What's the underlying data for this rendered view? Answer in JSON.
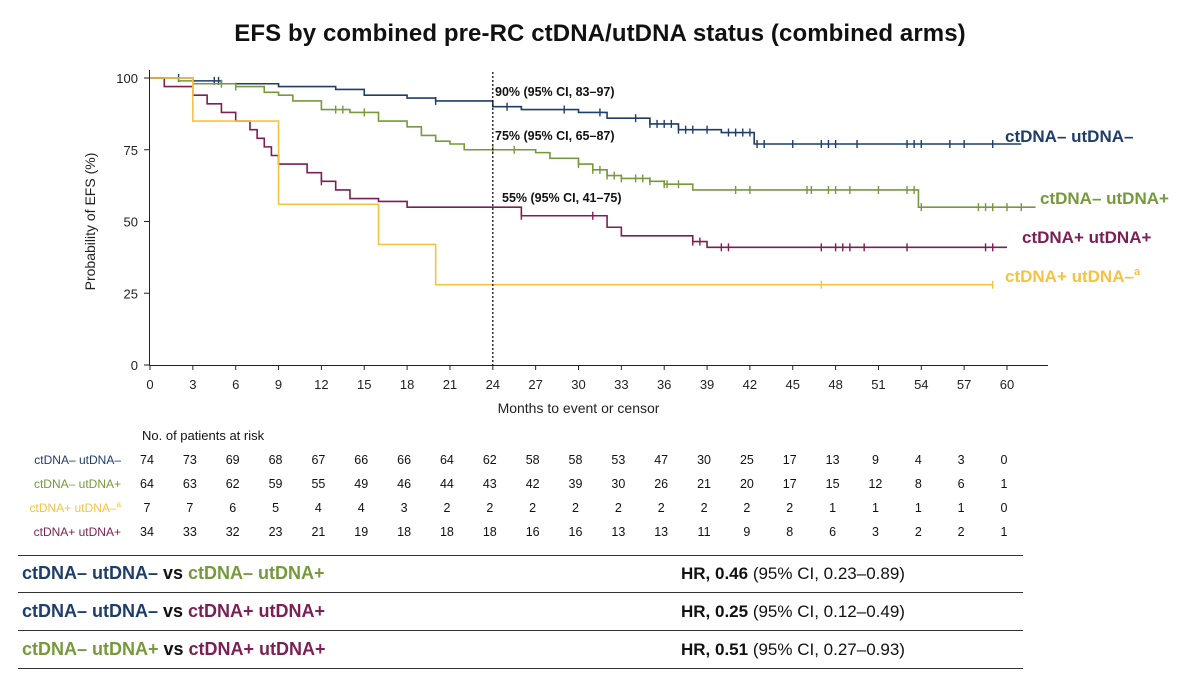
{
  "title": "EFS by combined pre-RC ctDNA/utDNA status (combined arms)",
  "chart_data": {
    "type": "line",
    "subtype": "kaplan-meier",
    "xlabel": "Months to event or censor",
    "ylabel": "Probability of EFS (%)",
    "xlim": [
      0,
      60
    ],
    "ylim": [
      0,
      100
    ],
    "xticks": [
      0,
      3,
      6,
      9,
      12,
      15,
      18,
      21,
      24,
      27,
      30,
      33,
      36,
      39,
      42,
      45,
      48,
      51,
      54,
      57,
      60
    ],
    "yticks": [
      0,
      25,
      50,
      75,
      100
    ],
    "reference_line_x": 24,
    "annotations": [
      {
        "text": "90% (95% CI, 83–97)",
        "x": 24,
        "y": 90
      },
      {
        "text": "75% (95% CI, 65–87)",
        "x": 24,
        "y": 75
      },
      {
        "text": "55% (95% CI, 41–75)",
        "x": 24,
        "y": 55
      }
    ],
    "series": [
      {
        "name": "ctDNA– utDNA–",
        "label_suffix": "",
        "color": "#1f3d6b",
        "steps": [
          [
            0,
            100
          ],
          [
            3,
            99
          ],
          [
            5,
            98
          ],
          [
            9,
            97
          ],
          [
            13,
            96
          ],
          [
            15,
            94
          ],
          [
            18,
            93
          ],
          [
            20,
            92
          ],
          [
            24,
            90
          ],
          [
            26,
            89
          ],
          [
            30,
            88
          ],
          [
            32,
            86
          ],
          [
            35,
            84
          ],
          [
            37,
            82
          ],
          [
            40,
            81
          ],
          [
            42.3,
            77
          ],
          [
            61,
            77
          ]
        ],
        "censors": [
          2,
          4.5,
          4.8,
          20,
          25,
          29,
          31.5,
          34,
          35,
          35.5,
          36,
          36.5,
          37,
          37.5,
          38,
          39,
          40.5,
          41,
          41.5,
          42,
          42.5,
          43,
          45,
          47,
          47.5,
          48,
          49.5,
          53,
          53.5,
          54,
          56,
          57,
          59
        ]
      },
      {
        "name": "ctDNA– utDNA+",
        "label_suffix": "",
        "color": "#76993c",
        "steps": [
          [
            0,
            100
          ],
          [
            2,
            99
          ],
          [
            3,
            98
          ],
          [
            6,
            97
          ],
          [
            8,
            95
          ],
          [
            9,
            94
          ],
          [
            10,
            92
          ],
          [
            12,
            89
          ],
          [
            14,
            88
          ],
          [
            16,
            85
          ],
          [
            18,
            83
          ],
          [
            19,
            80
          ],
          [
            20,
            78
          ],
          [
            21,
            77
          ],
          [
            22,
            75
          ],
          [
            24,
            75
          ],
          [
            27,
            74
          ],
          [
            28,
            72
          ],
          [
            30,
            70
          ],
          [
            31,
            68
          ],
          [
            32,
            66
          ],
          [
            33,
            65
          ],
          [
            35,
            64
          ],
          [
            36,
            63
          ],
          [
            38,
            61
          ],
          [
            53,
            61
          ],
          [
            53.8,
            55
          ],
          [
            62,
            55
          ]
        ],
        "censors": [
          3,
          5,
          6,
          13,
          13.5,
          15,
          24,
          25.5,
          30,
          31,
          31.5,
          32,
          32.5,
          33,
          34,
          34.5,
          35,
          36,
          36.2,
          37,
          41,
          42,
          46,
          46.3,
          47.5,
          48,
          49,
          51,
          53,
          53.5,
          54,
          58,
          58.5,
          59,
          60,
          61
        ]
      },
      {
        "name": "ctDNA+ utDNA+",
        "label_suffix": "",
        "color": "#7b1f54",
        "steps": [
          [
            0,
            100
          ],
          [
            1,
            97
          ],
          [
            3,
            94
          ],
          [
            4,
            91
          ],
          [
            5,
            88
          ],
          [
            6,
            85
          ],
          [
            7,
            82
          ],
          [
            7.5,
            79
          ],
          [
            8,
            76
          ],
          [
            8.5,
            73
          ],
          [
            9,
            70
          ],
          [
            11,
            67
          ],
          [
            12,
            64
          ],
          [
            13,
            61
          ],
          [
            14,
            58
          ],
          [
            16,
            57
          ],
          [
            18,
            55
          ],
          [
            20,
            55
          ],
          [
            26,
            52
          ],
          [
            31,
            52
          ],
          [
            32,
            48
          ],
          [
            33,
            45
          ],
          [
            38,
            43
          ],
          [
            39,
            41
          ],
          [
            60,
            41
          ]
        ],
        "censors": [
          12,
          26,
          31,
          38,
          38.5,
          40,
          40.5,
          47,
          48,
          48.5,
          49,
          50,
          53,
          58.5,
          59
        ]
      },
      {
        "name": "ctDNA+ utDNA–",
        "label_suffix": "a",
        "color": "#f5c242",
        "steps": [
          [
            0,
            100
          ],
          [
            3,
            85
          ],
          [
            9,
            56
          ],
          [
            16,
            42
          ],
          [
            20,
            28
          ],
          [
            59,
            28
          ]
        ],
        "censors": [
          47,
          59
        ]
      }
    ],
    "risk_table": {
      "header": "No. of patients at risk",
      "rows": [
        {
          "label": "ctDNA– utDNA–",
          "label_suffix": "",
          "values": [
            "74",
            "73",
            "69",
            "68",
            "67",
            "66",
            "66",
            "64",
            "62",
            "58",
            "58",
            "53",
            "47",
            "30",
            "25",
            "17",
            "13",
            "9",
            "4",
            "3",
            "0"
          ]
        },
        {
          "label": "ctDNA– utDNA+",
          "label_suffix": "",
          "values": [
            "64",
            "63",
            "62",
            "59",
            "55",
            "49",
            "46",
            "44",
            "43",
            "42",
            "39",
            "30",
            "26",
            "21",
            "20",
            "17",
            "15",
            "12",
            "8",
            "6",
            "1"
          ]
        },
        {
          "label": "ctDNA+ utDNA–",
          "label_suffix": "a",
          "values": [
            "7",
            "7",
            "6",
            "5",
            "4",
            "4",
            "3",
            "2",
            "2",
            "2",
            "2",
            "2",
            "2",
            "2",
            "2",
            "2",
            "1",
            "1",
            "1",
            "1",
            "0"
          ]
        },
        {
          "label": "ctDNA+ utDNA+",
          "label_suffix": "",
          "values": [
            "34",
            "33",
            "32",
            "23",
            "21",
            "19",
            "18",
            "18",
            "18",
            "16",
            "16",
            "13",
            "13",
            "11",
            "9",
            "8",
            "6",
            "3",
            "2",
            "2",
            "1"
          ]
        }
      ]
    }
  },
  "hr_table": [
    {
      "a": "ctDNA– utDNA–",
      "a_color": "#1f3d6b",
      "vs": "vs",
      "b": "ctDNA– utDNA+",
      "b_color": "#76993c",
      "hr_label": "HR,",
      "hr_value": "0.46",
      "ci": "(95% CI, 0.23–0.89)"
    },
    {
      "a": "ctDNA– utDNA–",
      "a_color": "#1f3d6b",
      "vs": "vs",
      "b": "ctDNA+ utDNA+",
      "b_color": "#7b1f54",
      "hr_label": "HR,",
      "hr_value": "0.25",
      "ci": "(95% CI, 0.12–0.49)"
    },
    {
      "a": "ctDNA– utDNA+",
      "a_color": "#76993c",
      "vs": "vs",
      "b": "ctDNA+ utDNA+",
      "b_color": "#7b1f54",
      "hr_label": "HR,",
      "hr_value": "0.51",
      "ci": "(95% CI, 0.27–0.93)"
    }
  ]
}
